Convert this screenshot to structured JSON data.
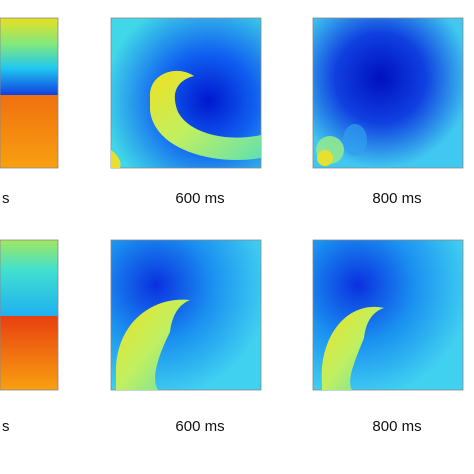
{
  "rows": [
    {
      "labels": [
        "s",
        "600 ms",
        "800 ms"
      ]
    },
    {
      "labels": [
        "s",
        "600 ms",
        "800 ms"
      ]
    }
  ]
}
